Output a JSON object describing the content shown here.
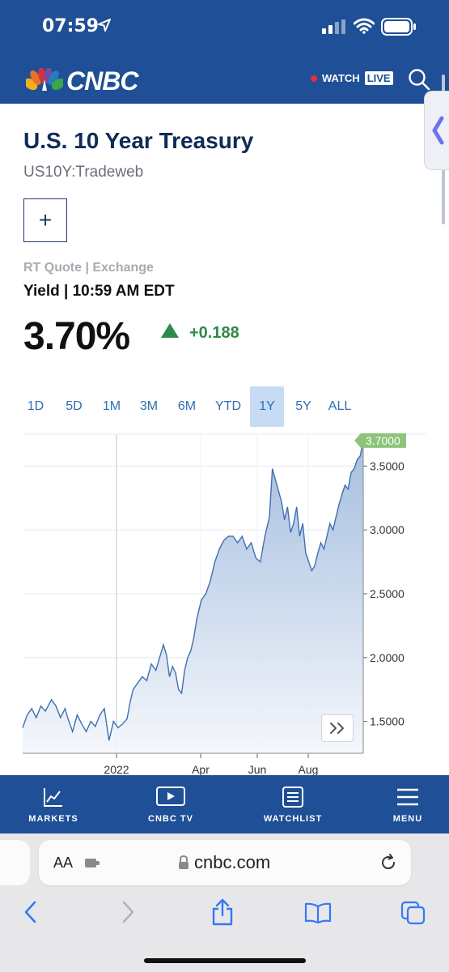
{
  "status_bar": {
    "time": "07:59"
  },
  "header": {
    "brand": "CNBC",
    "watch_label": "WATCH",
    "live_label": "LIVE"
  },
  "quote": {
    "title": "U.S. 10 Year Treasury",
    "symbol": "US10Y:Tradeweb",
    "add_label": "+",
    "source_label": "RT Quote | Exchange",
    "time_label": "Yield | 10:59 AM EDT",
    "value": "3.70%",
    "change": "+0.188",
    "colors": {
      "up": "#2e8b4a",
      "brand": "#1f4f96"
    }
  },
  "ranges": {
    "items": [
      "1D",
      "5D",
      "1M",
      "3M",
      "6M",
      "YTD",
      "1Y",
      "5Y",
      "ALL"
    ],
    "active": "1Y"
  },
  "chart_data": {
    "type": "area",
    "x_tick_labels": [
      "2022",
      "Apr",
      "Jun",
      "Aug"
    ],
    "y_tick_labels": [
      "1.5000",
      "2.0000",
      "2.5000",
      "3.0000",
      "3.5000"
    ],
    "ylim": [
      1.25,
      3.75
    ],
    "last_label": "3.7000",
    "grid": true,
    "series": [
      {
        "points": [
          [
            0,
            1.45
          ],
          [
            6,
            1.55
          ],
          [
            12,
            1.6
          ],
          [
            18,
            1.53
          ],
          [
            24,
            1.62
          ],
          [
            30,
            1.58
          ],
          [
            38,
            1.67
          ],
          [
            44,
            1.62
          ],
          [
            50,
            1.53
          ],
          [
            56,
            1.6
          ],
          [
            60,
            1.52
          ],
          [
            66,
            1.42
          ],
          [
            72,
            1.55
          ],
          [
            78,
            1.48
          ],
          [
            84,
            1.42
          ],
          [
            90,
            1.5
          ],
          [
            96,
            1.46
          ],
          [
            102,
            1.55
          ],
          [
            108,
            1.6
          ],
          [
            114,
            1.35
          ],
          [
            120,
            1.5
          ],
          [
            126,
            1.45
          ],
          [
            132,
            1.48
          ],
          [
            138,
            1.52
          ],
          [
            142,
            1.65
          ],
          [
            146,
            1.75
          ],
          [
            152,
            1.8
          ],
          [
            158,
            1.85
          ],
          [
            164,
            1.82
          ],
          [
            170,
            1.95
          ],
          [
            176,
            1.9
          ],
          [
            182,
            2.02
          ],
          [
            186,
            2.1
          ],
          [
            190,
            2.02
          ],
          [
            194,
            1.85
          ],
          [
            198,
            1.93
          ],
          [
            202,
            1.88
          ],
          [
            206,
            1.75
          ],
          [
            210,
            1.72
          ],
          [
            214,
            1.9
          ],
          [
            218,
            2.0
          ],
          [
            222,
            2.05
          ],
          [
            226,
            2.15
          ],
          [
            230,
            2.3
          ],
          [
            236,
            2.45
          ],
          [
            242,
            2.5
          ],
          [
            248,
            2.6
          ],
          [
            254,
            2.75
          ],
          [
            260,
            2.85
          ],
          [
            266,
            2.92
          ],
          [
            272,
            2.95
          ],
          [
            278,
            2.95
          ],
          [
            284,
            2.9
          ],
          [
            290,
            2.95
          ],
          [
            296,
            2.85
          ],
          [
            302,
            2.9
          ],
          [
            308,
            2.78
          ],
          [
            314,
            2.75
          ],
          [
            320,
            2.95
          ],
          [
            326,
            3.1
          ],
          [
            330,
            3.48
          ],
          [
            336,
            3.35
          ],
          [
            342,
            3.22
          ],
          [
            346,
            3.08
          ],
          [
            350,
            3.18
          ],
          [
            354,
            2.98
          ],
          [
            358,
            3.05
          ],
          [
            362,
            3.18
          ],
          [
            366,
            2.95
          ],
          [
            370,
            3.05
          ],
          [
            374,
            2.82
          ],
          [
            378,
            2.75
          ],
          [
            382,
            2.68
          ],
          [
            386,
            2.72
          ],
          [
            390,
            2.82
          ],
          [
            394,
            2.9
          ],
          [
            398,
            2.85
          ],
          [
            402,
            2.95
          ],
          [
            406,
            3.05
          ],
          [
            410,
            3.0
          ],
          [
            414,
            3.1
          ],
          [
            418,
            3.2
          ],
          [
            422,
            3.28
          ],
          [
            426,
            3.35
          ],
          [
            430,
            3.32
          ],
          [
            434,
            3.45
          ],
          [
            438,
            3.48
          ],
          [
            442,
            3.55
          ],
          [
            446,
            3.58
          ],
          [
            450,
            3.7
          ]
        ]
      }
    ]
  },
  "bottom_nav": {
    "items": [
      {
        "label": "MARKETS",
        "icon": "chart-icon"
      },
      {
        "label": "CNBC TV",
        "icon": "play-icon"
      },
      {
        "label": "WATCHLIST",
        "icon": "list-icon"
      },
      {
        "label": "MENU",
        "icon": "hamburger-icon"
      }
    ]
  },
  "browser": {
    "aa_label": "AA",
    "url": "cnbc.com"
  }
}
